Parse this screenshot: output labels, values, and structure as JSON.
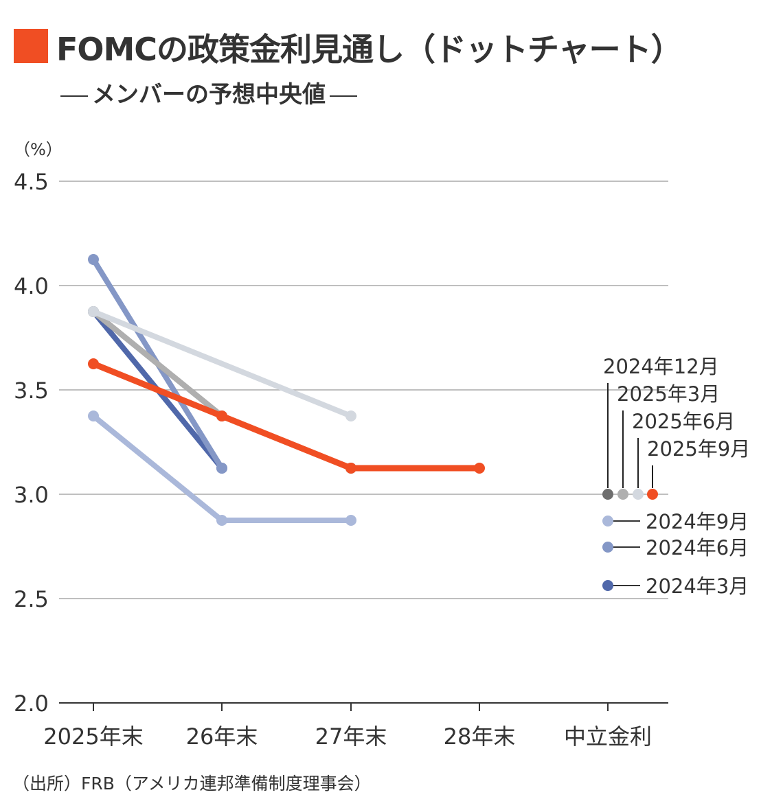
{
  "title": "FOMCの政策金利見通し（ドットチャート）",
  "subtitle": "メンバーの予想中央値",
  "source": "（出所）FRB（アメリカ連邦準備制度理事会）",
  "colors": {
    "accent": "#F04E23",
    "grid": "#aaaaaa",
    "axis": "#333333"
  },
  "chart_data": {
    "type": "line",
    "unit_label": "（%）",
    "categories": [
      "2025年末",
      "26年末",
      "27年末",
      "28年末",
      "中立金利"
    ],
    "ylim": [
      2.0,
      4.5
    ],
    "yticks": [
      "2.0",
      "2.5",
      "3.0",
      "3.5",
      "4.0",
      "4.5"
    ],
    "grid": true,
    "series": [
      {
        "name": "2024年3月",
        "color": "#5068AA",
        "values": [
          3.875,
          3.125,
          null,
          null,
          null
        ]
      },
      {
        "name": "2024年6月",
        "color": "#8497C6",
        "values": [
          4.125,
          3.125,
          null,
          null,
          null
        ]
      },
      {
        "name": "2024年9月",
        "color": "#AAB8DA",
        "values": [
          3.375,
          2.875,
          2.875,
          null,
          null
        ]
      },
      {
        "name": "2024年12月",
        "color": "#6E6E6E",
        "values": [
          3.875,
          3.375,
          3.125,
          null,
          3.0
        ]
      },
      {
        "name": "2025年3月",
        "color": "#AFAFAF",
        "values": [
          3.875,
          3.375,
          3.125,
          null,
          3.0
        ]
      },
      {
        "name": "2025年6月",
        "color": "#D3D8DF",
        "values": [
          3.875,
          null,
          3.375,
          null,
          3.0
        ]
      },
      {
        "name": "2025年9月",
        "color": "#F04E23",
        "values": [
          3.625,
          3.375,
          3.125,
          3.125,
          3.0
        ]
      }
    ],
    "legend": {
      "neutral_labels": [
        "2024年12月",
        "2025年3月",
        "2025年6月",
        "2025年9月"
      ],
      "line_labels": [
        "2024年9月",
        "2024年6月",
        "2024年3月"
      ]
    }
  }
}
